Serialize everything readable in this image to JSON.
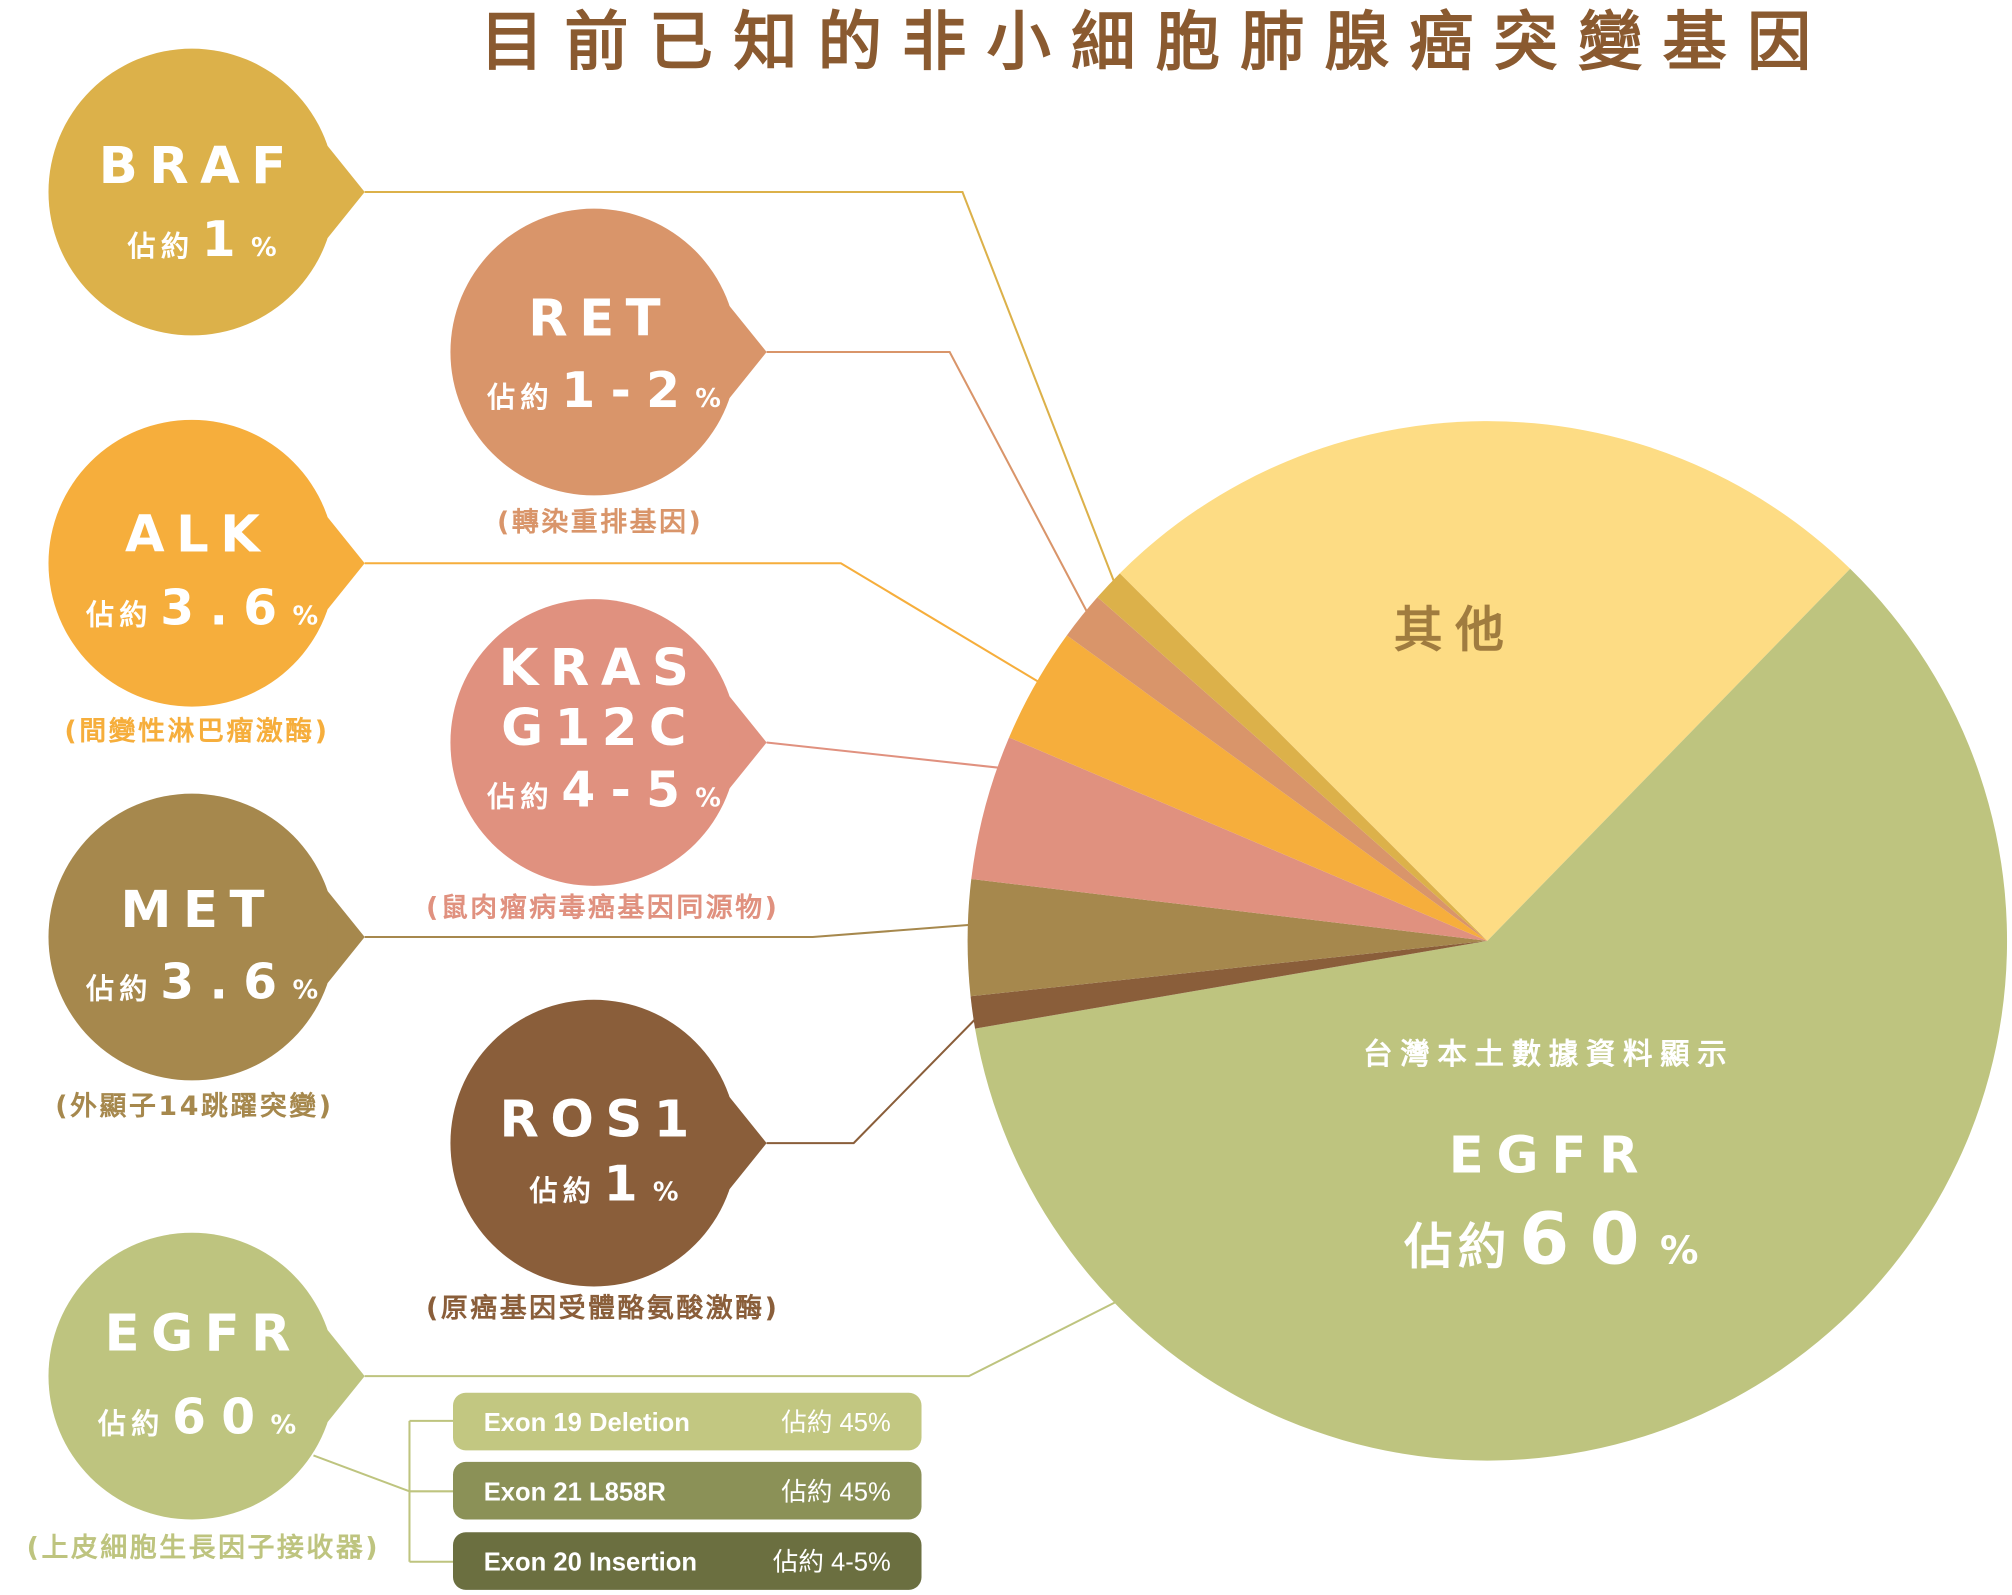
{
  "chart_data": {
    "type": "pie",
    "title": "目前已知的非小細胞肺腺癌突變基因",
    "categories": [
      "其他",
      "EGFR",
      "ROS1",
      "MET",
      "KRAS G12C",
      "ALK",
      "RET",
      "BRAF"
    ],
    "values": [
      24.8,
      60,
      1,
      3.6,
      4.5,
      3.6,
      1.5,
      1
    ],
    "colors": [
      "#fddc84",
      "#bec47f",
      "#8a5e3a",
      "#a6884d",
      "#e0917f",
      "#f6ae3c",
      "#d9956a",
      "#dcb14a"
    ]
  },
  "colors": {
    "title": "#8a5a30",
    "other_label": "#a07c3f",
    "egfr_bracket": "#bec47f"
  },
  "pie_note": "台灣本土數據資料顯示",
  "pie_egfr_share": {
    "prefix": "佔約",
    "value": "60",
    "unit": "%"
  },
  "callouts": {
    "braf": {
      "prefix": "佔約",
      "value": "1",
      "unit": "%",
      "color": "#dcb14a"
    },
    "ret": {
      "prefix": "佔約",
      "value": "1-2",
      "unit": "%",
      "caption": "(轉染重排基因)",
      "color": "#d9956a"
    },
    "alk": {
      "prefix": "佔約",
      "value": "3.6",
      "unit": "%",
      "caption": "(間變性淋巴瘤激酶)",
      "color": "#f6ae3c"
    },
    "kras": {
      "prefix": "佔約",
      "value": "4-5",
      "unit": "%",
      "caption": "(鼠肉瘤病毒癌基因同源物)",
      "color": "#e0917f"
    },
    "met": {
      "prefix": "佔約",
      "value": "3.6",
      "unit": "%",
      "caption": "(外顯子14跳躍突變)",
      "color": "#a6884d"
    },
    "ros1": {
      "prefix": "佔約",
      "value": "1",
      "unit": "%",
      "caption": "(原癌基因受體酪氨酸激酶)",
      "color": "#8a5e3a"
    },
    "egfr": {
      "prefix": "佔約",
      "value": "60",
      "unit": "%",
      "caption": "(上皮細胞生長因子接收器)",
      "color": "#bec47f"
    }
  },
  "egfr_subtypes": [
    {
      "name": "Exon 19 Deletion",
      "share": "佔約 45%",
      "color": "#c2c781"
    },
    {
      "name": "Exon 21 L858R",
      "share": "佔約 45%",
      "color": "#8b9157"
    },
    {
      "name": "Exon 20 Insertion",
      "share": "佔約 4-5%",
      "color": "#6b6f40"
    }
  ]
}
